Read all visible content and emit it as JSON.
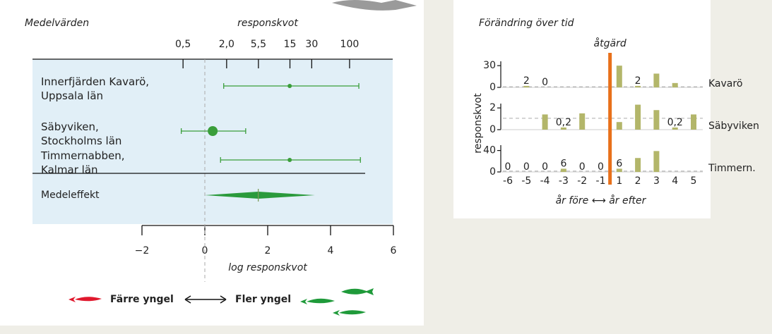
{
  "chart_data": [
    {
      "type": "forest",
      "title": "Medelvärden",
      "x2label": "responskvot",
      "xlabel": "log responskvot",
      "xlim": [
        -2,
        6
      ],
      "xticks": [
        {
          "value": -2,
          "label": "−2"
        },
        0,
        2,
        4,
        6
      ],
      "x2ticks": [
        {
          "value": -0.693,
          "label": "0,5"
        },
        {
          "value": 0.693,
          "label": "2,0"
        },
        {
          "value": 1.705,
          "label": "5,5"
        },
        {
          "value": 2.708,
          "label": "15"
        },
        {
          "value": 3.401,
          "label": "30"
        },
        {
          "value": 4.605,
          "label": "100"
        }
      ],
      "categories": [
        "Innerfjärden Kavarö,\nUppsala län",
        "Säbyviken,\nStockholms län",
        "Timmernabben,\nKalmar län"
      ],
      "values": [
        2.7,
        0.25,
        2.7
      ],
      "lower": [
        0.6,
        -0.75,
        0.5
      ],
      "upper": [
        4.9,
        1.3,
        4.95
      ],
      "weights": [
        1,
        3,
        1
      ],
      "color": "#3a9e3a",
      "summary": {
        "label": "Medeleffekt",
        "value": 1.7,
        "lower": 0,
        "upper": 3.5,
        "color": "#2a9a3c"
      },
      "legend": [
        {
          "name": "Färre yngel",
          "color": "#e0182d"
        },
        {
          "name": "Fler yngel",
          "color": "#1f9a3a"
        }
      ]
    },
    {
      "type": "bar-panels",
      "title": "Förändring över tid",
      "annotation": "åtgärd",
      "xlabel": "år före ⟷ år efter",
      "ylabel": "responskvot",
      "categories": [
        "-6",
        "-5",
        "-4",
        "-3",
        "-2",
        "-1",
        "1",
        "2",
        "3",
        "4",
        "5"
      ],
      "color": "#b3b66a",
      "intervention_color": "#e8701a",
      "panels": [
        {
          "name": "Kavarö",
          "ylim": [
            0,
            36
          ],
          "yticks": [
            0,
            30
          ],
          "reference": 0.8,
          "values": [
            null,
            2,
            0,
            null,
            null,
            null,
            30,
            2,
            19,
            6,
            null
          ],
          "value_labels": [
            null,
            "2",
            "0",
            null,
            null,
            null,
            null,
            "2",
            null,
            null,
            null
          ]
        },
        {
          "name": "Säbyviken",
          "ylim": [
            0,
            2.4
          ],
          "yticks": [
            0,
            2
          ],
          "reference": 1.05,
          "values": [
            null,
            null,
            1.4,
            0.2,
            1.5,
            null,
            0.7,
            2.3,
            1.8,
            0.2,
            1.4
          ],
          "value_labels": [
            null,
            null,
            null,
            "0,2",
            null,
            null,
            null,
            null,
            null,
            "0,2",
            null
          ]
        },
        {
          "name": "Timmern.",
          "ylim": [
            0,
            50
          ],
          "yticks": [
            0,
            40
          ],
          "reference": 1.5,
          "values": [
            0,
            0,
            0,
            6,
            0,
            0,
            6,
            26,
            39,
            null,
            null
          ],
          "value_labels": [
            "0",
            "0",
            "0",
            "6",
            "0",
            "0",
            "6",
            null,
            null,
            null,
            null
          ]
        }
      ]
    }
  ]
}
